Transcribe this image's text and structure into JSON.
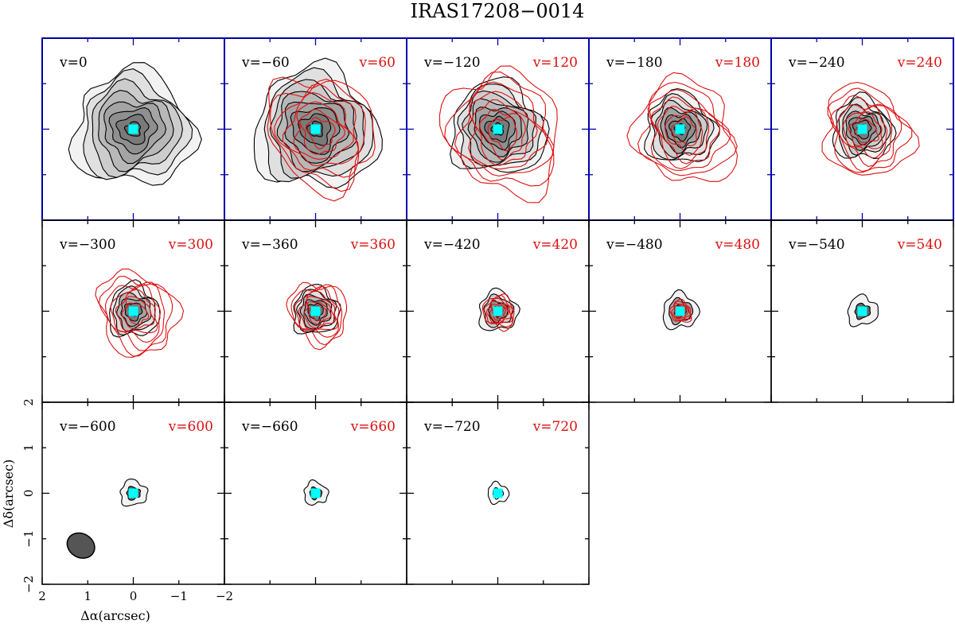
{
  "chart_data": {
    "type": "channel-map",
    "title": "IRAS17208−0014",
    "xlabel": "Δα(arcsec)",
    "ylabel": "Δδ(arcsec)",
    "xlim": [
      2,
      -2
    ],
    "ylim": [
      -2,
      2
    ],
    "x_ticks": [
      "2",
      "1",
      "0",
      "−1",
      "−2"
    ],
    "y_ticks": [
      "−2",
      "−1",
      "0",
      "1",
      "2"
    ],
    "center_marker": {
      "x": 0,
      "y": 0,
      "color": "#00ffff"
    },
    "beam": {
      "x": 1.15,
      "y": -1.15,
      "color": "#555555"
    },
    "blue_color": "#000000",
    "red_color": "#dd1111",
    "frame_highlight_color": "#0000aa",
    "panels": [
      {
        "blue_label": "v=0",
        "red_label": "",
        "blue_radius": 1.25,
        "red_radius": 0,
        "fill_levels": 8
      },
      {
        "blue_label": "v=−60",
        "red_label": "v=60",
        "blue_radius": 1.3,
        "red_radius": 1.3,
        "fill_levels": 8
      },
      {
        "blue_label": "v=−120",
        "red_label": "v=120",
        "blue_radius": 1.0,
        "red_radius": 1.4,
        "fill_levels": 8
      },
      {
        "blue_label": "v=−180",
        "red_label": "v=180",
        "blue_radius": 0.75,
        "red_radius": 1.2,
        "fill_levels": 7
      },
      {
        "blue_label": "v=−240",
        "red_label": "v=240",
        "blue_radius": 0.65,
        "red_radius": 1.05,
        "fill_levels": 7
      },
      {
        "blue_label": "v=−300",
        "red_label": "v=300",
        "blue_radius": 0.55,
        "red_radius": 0.95,
        "fill_levels": 6
      },
      {
        "blue_label": "v=−360",
        "red_label": "v=360",
        "blue_radius": 0.5,
        "red_radius": 0.7,
        "fill_levels": 6
      },
      {
        "blue_label": "v=−420",
        "red_label": "v=420",
        "blue_radius": 0.42,
        "red_radius": 0.38,
        "fill_levels": 4
      },
      {
        "blue_label": "v=−480",
        "red_label": "v=480",
        "blue_radius": 0.38,
        "red_radius": 0.25,
        "fill_levels": 3
      },
      {
        "blue_label": "v=−540",
        "red_label": "v=540",
        "blue_radius": 0.32,
        "red_radius": 0.05,
        "fill_levels": 2
      },
      {
        "blue_label": "v=−600",
        "red_label": "v=600",
        "blue_radius": 0.28,
        "red_radius": 0,
        "fill_levels": 1
      },
      {
        "blue_label": "v=−660",
        "red_label": "v=660",
        "blue_radius": 0.25,
        "red_radius": 0,
        "fill_levels": 1
      },
      {
        "blue_label": "v=−720",
        "red_label": "v=720",
        "blue_radius": 0.22,
        "red_radius": 0,
        "fill_levels": 0
      }
    ]
  }
}
